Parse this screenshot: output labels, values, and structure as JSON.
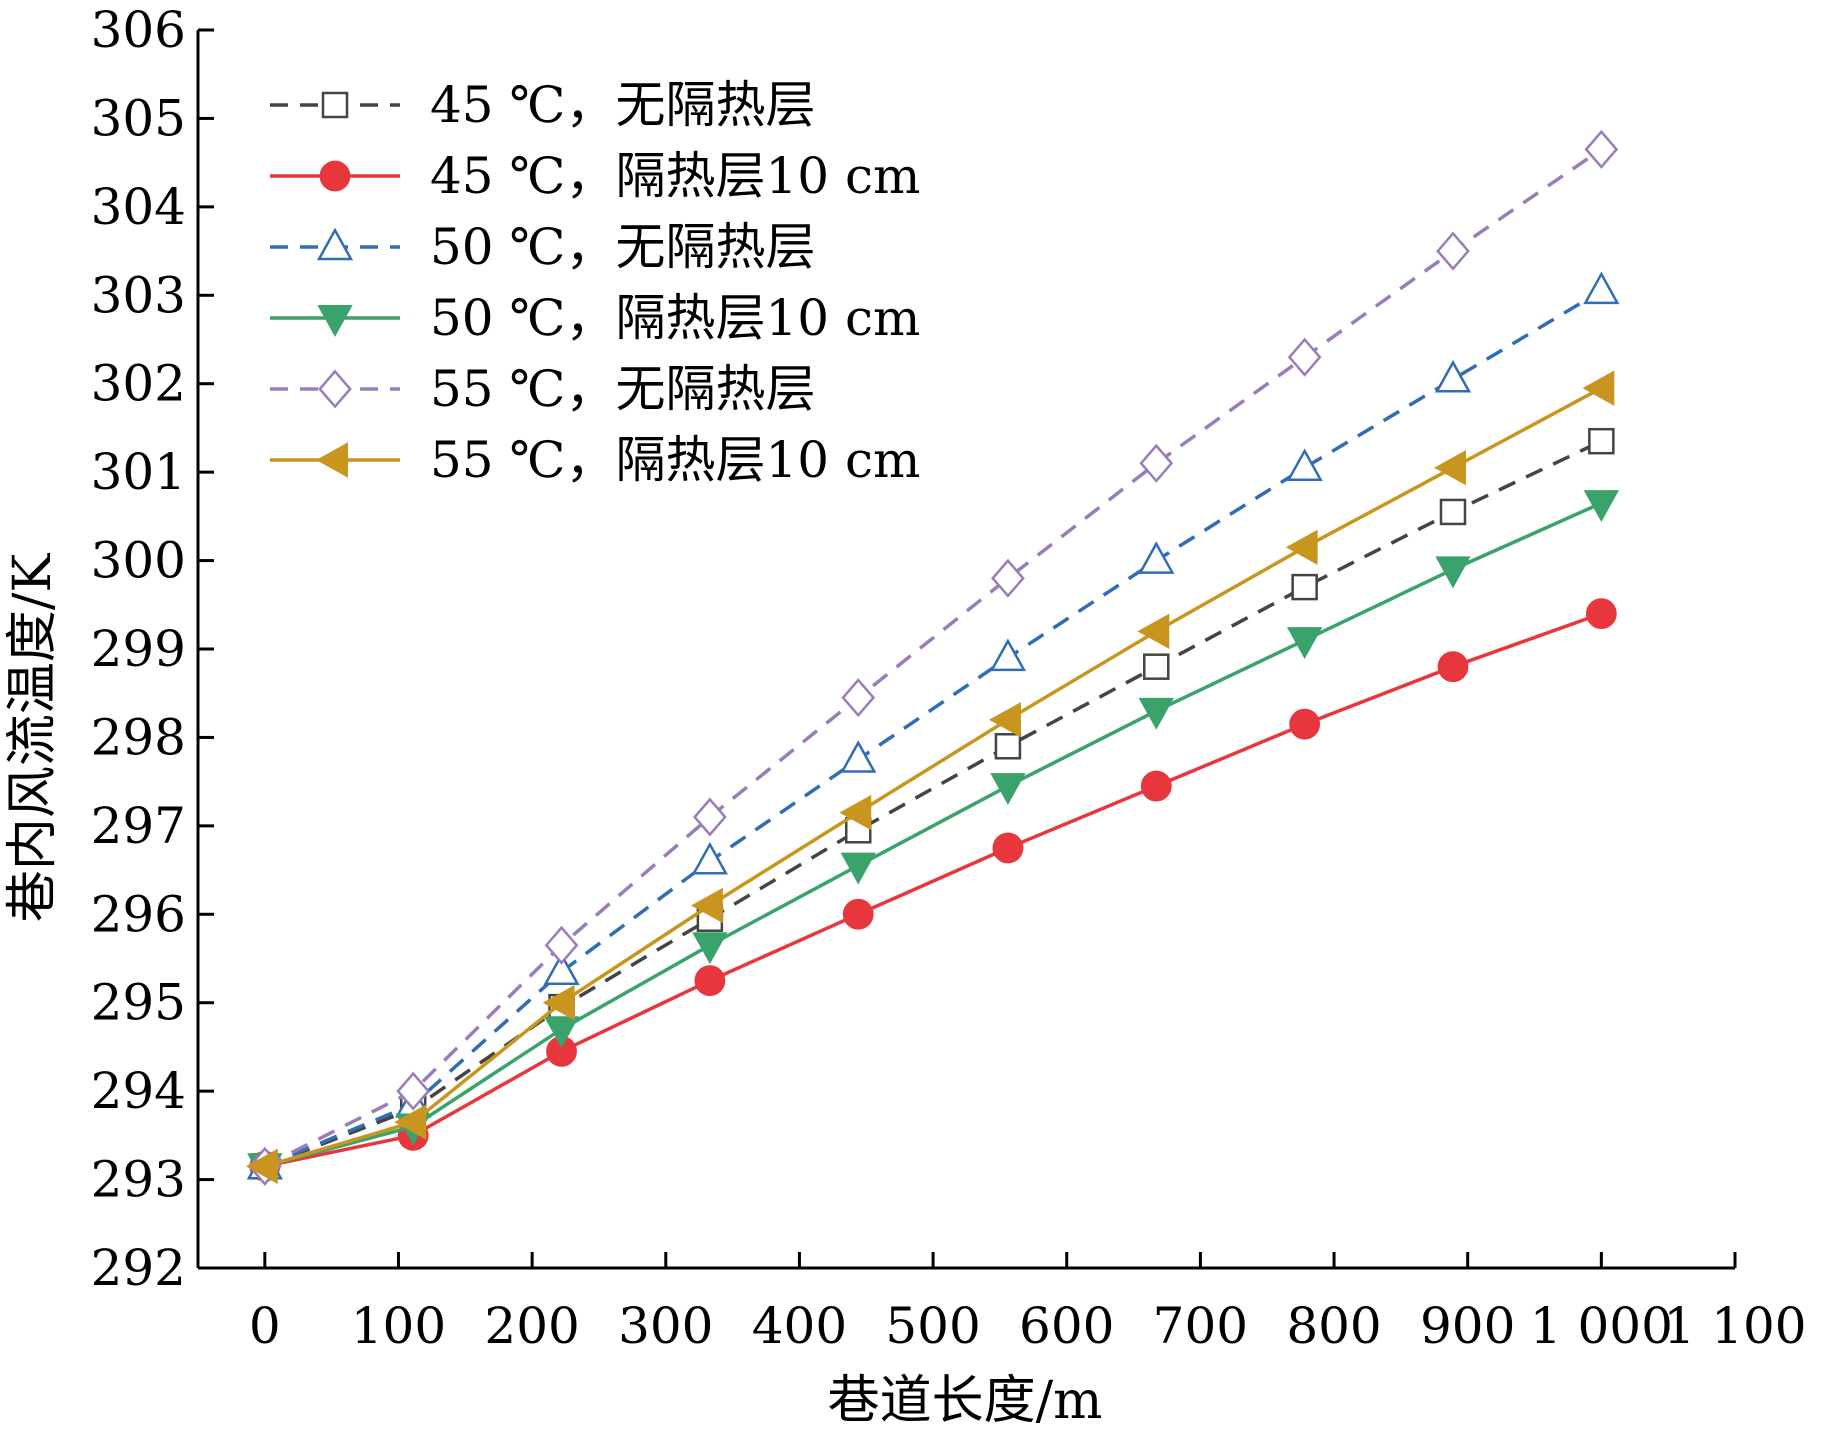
{
  "chart_data": {
    "type": "line",
    "xlabel": "巷道长度/m",
    "ylabel": "巷内风流温度/K",
    "xlim": [
      -50,
      1100
    ],
    "ylim": [
      292,
      306
    ],
    "x_ticks": [
      0,
      100,
      200,
      300,
      400,
      500,
      600,
      700,
      800,
      900,
      1000,
      1100
    ],
    "x_tick_labels": [
      "0",
      "100",
      "200",
      "300",
      "400",
      "500",
      "600",
      "700",
      "800",
      "900",
      "1 000",
      "1 100"
    ],
    "y_ticks": [
      292,
      293,
      294,
      295,
      296,
      297,
      298,
      299,
      300,
      301,
      302,
      303,
      304,
      305,
      306
    ],
    "y_tick_labels": [
      "292",
      "293",
      "294",
      "295",
      "296",
      "297",
      "298",
      "299",
      "300",
      "301",
      "302",
      "303",
      "304",
      "305",
      "306"
    ],
    "legend_position": "top-left",
    "grid": false,
    "x": [
      0,
      111,
      222,
      333,
      444,
      556,
      667,
      778,
      889,
      1000
    ],
    "series": [
      {
        "name": "45 ℃，无隔热层",
        "color": "#444444",
        "dash": true,
        "marker": "square-open",
        "values": [
          293.15,
          293.8,
          294.95,
          295.95,
          296.95,
          297.9,
          298.8,
          299.7,
          300.55,
          301.35
        ]
      },
      {
        "name": "45 ℃，隔热层10 cm",
        "color": "#e8363d",
        "dash": false,
        "marker": "circle-filled",
        "values": [
          293.15,
          293.5,
          294.45,
          295.25,
          296.0,
          296.75,
          297.45,
          298.15,
          298.8,
          299.4
        ]
      },
      {
        "name": "50 ℃，无隔热层",
        "color": "#2f6db5",
        "dash": true,
        "marker": "triangle-up-open",
        "values": [
          293.15,
          293.85,
          295.35,
          296.6,
          297.75,
          298.9,
          300.0,
          301.05,
          302.05,
          303.05
        ]
      },
      {
        "name": "50 ℃，隔热层10 cm",
        "color": "#3aa36b",
        "dash": false,
        "marker": "triangle-down-filled",
        "values": [
          293.15,
          293.6,
          294.7,
          295.65,
          296.55,
          297.45,
          298.3,
          299.1,
          299.9,
          300.65
        ]
      },
      {
        "name": "55 ℃，无隔热层",
        "color": "#9b7cba",
        "dash": true,
        "marker": "diamond-open",
        "values": [
          293.15,
          294.0,
          295.65,
          297.1,
          298.45,
          299.8,
          301.1,
          302.3,
          303.5,
          304.65
        ]
      },
      {
        "name": "55 ℃，隔热层10 cm",
        "color": "#c8961e",
        "dash": false,
        "marker": "triangle-left-filled",
        "values": [
          293.15,
          293.65,
          295.0,
          296.1,
          297.15,
          298.2,
          299.2,
          300.15,
          301.05,
          301.95
        ]
      }
    ]
  }
}
